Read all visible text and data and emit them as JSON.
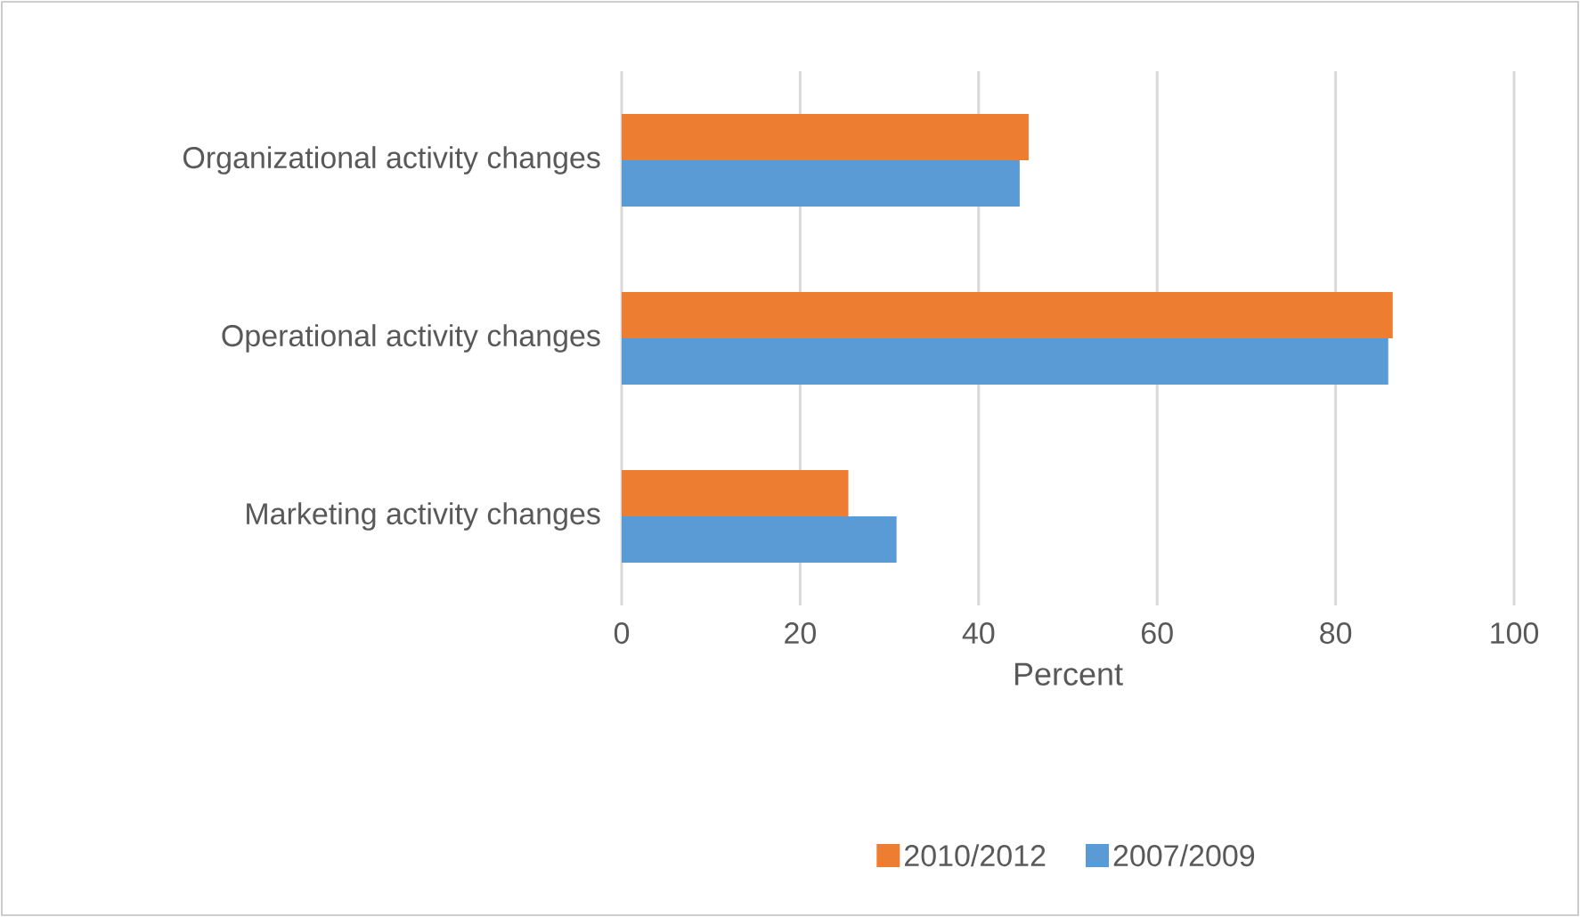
{
  "chart_data": {
    "type": "bar",
    "orientation": "horizontal",
    "xlabel": "Percent",
    "categories": [
      "Organizational activity changes",
      "Operational activity changes",
      "Marketing activity changes"
    ],
    "series": [
      {
        "name": "2010/2012",
        "color": "#ed7d31",
        "values": [
          45.6,
          86.4,
          25.4
        ]
      },
      {
        "name": "2007/2009",
        "color": "#5b9bd5",
        "values": [
          44.6,
          85.9,
          30.8
        ]
      }
    ],
    "xlim": [
      0,
      100
    ],
    "xticks": [
      0,
      20,
      40,
      60,
      80,
      100
    ],
    "grid": "x",
    "legend": "bottom"
  }
}
